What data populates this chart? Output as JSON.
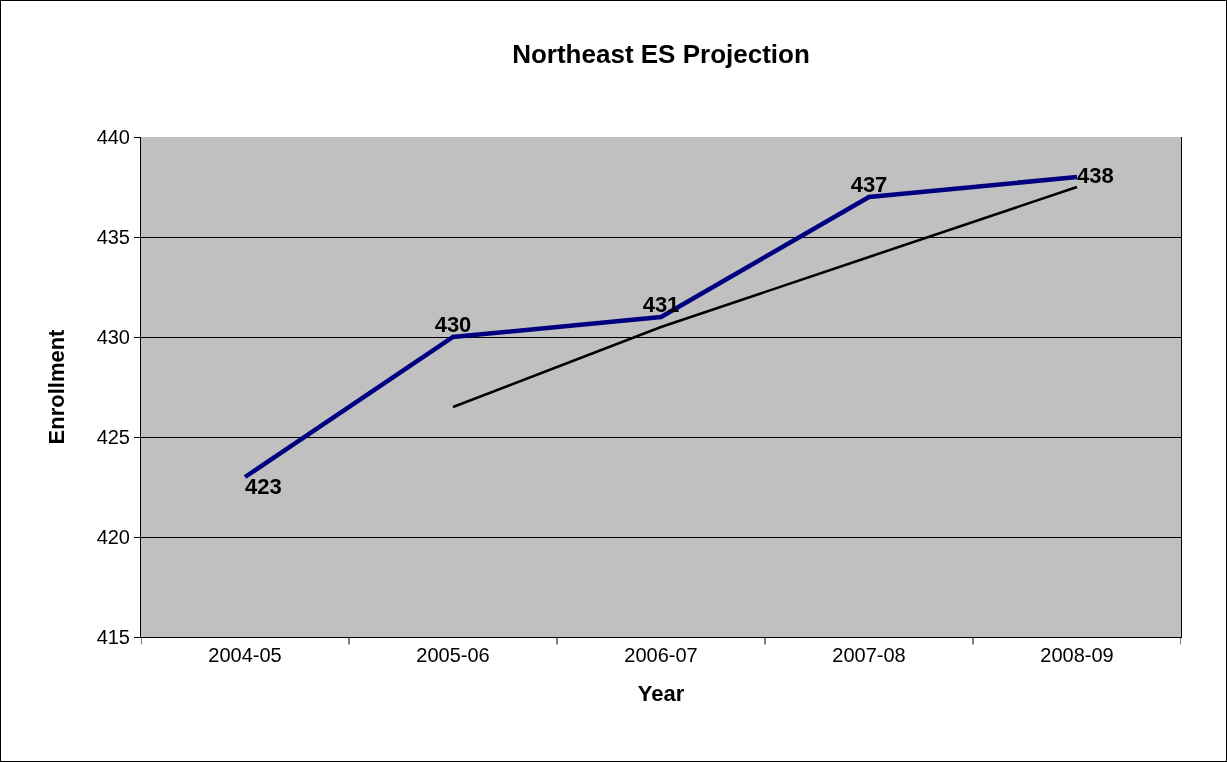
{
  "chart_data": {
    "type": "line",
    "title": "Northeast ES Projection",
    "xlabel": "Year",
    "ylabel": "Enrollment",
    "categories": [
      "2004-05",
      "2005-06",
      "2006-07",
      "2007-08",
      "2008-09"
    ],
    "series": [
      {
        "color": "#000080",
        "values": [
          423,
          430,
          431,
          437,
          438
        ],
        "value_labels": [
          "423",
          "430",
          "431",
          "437",
          "438"
        ]
      },
      {
        "type": "line",
        "color": "#000000",
        "values": [
          null,
          426.5,
          430.5,
          434,
          437.5
        ]
      }
    ],
    "ylim": [
      415,
      440
    ],
    "yticks": [
      415,
      420,
      425,
      430,
      435,
      440
    ],
    "grid": "y",
    "marker": "none",
    "line_style": "solid"
  }
}
